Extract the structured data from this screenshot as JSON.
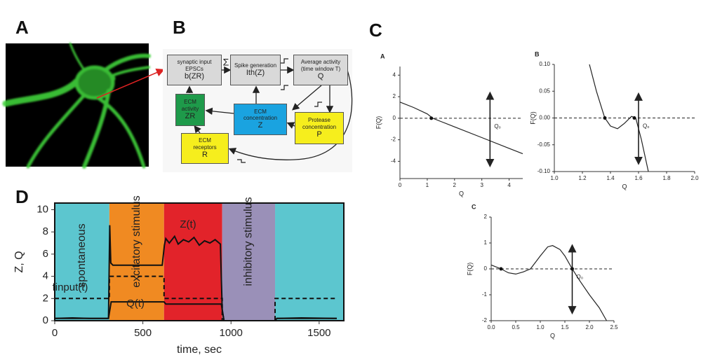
{
  "panels": [
    "A",
    "B",
    "C",
    "D"
  ],
  "diagram": {
    "nodes": [
      {
        "lines": [
          "synaptic input",
          "EPSCs",
          "b(ZR)"
        ]
      },
      {
        "lines": [
          "Spike generation",
          "Ith(Z)"
        ]
      },
      {
        "lines": [
          "Average activity",
          "(time window T)",
          "Q"
        ]
      },
      {
        "lines": [
          "ECM",
          "activity",
          "ZR"
        ]
      },
      {
        "lines": [
          "ECM",
          "concentration",
          "Z"
        ]
      },
      {
        "lines": [
          "Protease",
          "concentration",
          "P"
        ]
      },
      {
        "lines": [
          "ECM",
          "receptors",
          "R"
        ]
      }
    ],
    "sum": "Σ"
  },
  "chart_data": [
    {
      "type": "line",
      "title": "A",
      "x_label": "Q",
      "y_label": "F(Q)",
      "xlim": [
        0,
        4.5
      ],
      "xticks": [
        0,
        1,
        2,
        3,
        4
      ],
      "ylim": [
        -5.6,
        4.8
      ],
      "yticks": [
        -4,
        -2,
        0,
        2,
        4
      ],
      "hline": 0,
      "points": [
        {
          "x": 1.15,
          "y": 0
        }
      ],
      "arrow": {
        "x": 3.3,
        "label": "Q₀"
      },
      "series": [
        {
          "color": "#222222",
          "x": [
            0,
            0.5,
            1,
            1.2,
            1.5,
            2,
            3,
            4,
            4.5
          ],
          "values": [
            1.5,
            1.0,
            0.4,
            0,
            -0.3,
            -0.8,
            -1.8,
            -2.8,
            -3.3
          ]
        }
      ]
    },
    {
      "type": "line",
      "title": "B",
      "x_label": "Q",
      "y_label": "F(Q)",
      "xlim": [
        1.0,
        2.0
      ],
      "xticks": [
        {
          "value": 1,
          "label": "1.0"
        },
        {
          "value": 1.2,
          "label": "1.2"
        },
        {
          "value": 1.4,
          "label": "1.4"
        },
        {
          "value": 1.6,
          "label": "1.6"
        },
        {
          "value": 1.8,
          "label": "1.8"
        },
        {
          "value": 2,
          "label": "2.0"
        }
      ],
      "ylim": [
        -0.1,
        0.1
      ],
      "yticks": [
        {
          "value": -0.1,
          "label": "-0.10"
        },
        {
          "value": -0.05,
          "label": "-0.05"
        },
        {
          "value": 0,
          "label": "0.00"
        },
        {
          "value": 0.05,
          "label": "0.05"
        },
        {
          "value": 0.1,
          "label": "0.10"
        }
      ],
      "hline": 0,
      "points": [
        {
          "x": 1.36,
          "y": 0
        },
        {
          "x": 1.57,
          "y": 0
        }
      ],
      "arrow": {
        "x": 1.6,
        "label": "Q₀"
      },
      "series": [
        {
          "color": "#222222",
          "x": [
            1.25,
            1.3,
            1.35,
            1.36,
            1.4,
            1.45,
            1.5,
            1.55,
            1.58,
            1.62,
            1.67
          ],
          "values": [
            0.1,
            0.05,
            0.008,
            0,
            -0.015,
            -0.02,
            -0.01,
            0.003,
            0,
            -0.04,
            -0.1
          ]
        }
      ]
    },
    {
      "type": "line",
      "title": "C",
      "x_label": "Q",
      "y_label": "F(Q)",
      "xlim": [
        0,
        2.5
      ],
      "xticks": [
        {
          "value": 0,
          "label": "0.0"
        },
        {
          "value": 0.5,
          "label": "0.5"
        },
        {
          "value": 1,
          "label": "1.0"
        },
        {
          "value": 1.5,
          "label": "1.5"
        },
        {
          "value": 2,
          "label": "2.0"
        },
        {
          "value": 2.5,
          "label": "2.5"
        }
      ],
      "ylim": [
        -2,
        2
      ],
      "yticks": [
        -2,
        -1,
        0,
        1,
        2
      ],
      "hline": 0,
      "points": [
        {
          "x": 0.2,
          "y": 0
        },
        {
          "x": 1.65,
          "y": 0
        }
      ],
      "arrow": {
        "x": 1.65,
        "label": "Q₀"
      },
      "series": [
        {
          "color": "#222222",
          "x": [
            0,
            0.2,
            0.35,
            0.5,
            0.65,
            0.8,
            1.0,
            1.15,
            1.25,
            1.4,
            1.5,
            1.65,
            1.8,
            2.0,
            2.2,
            2.35
          ],
          "values": [
            0.15,
            0,
            -0.15,
            -0.2,
            -0.12,
            0,
            0.5,
            0.85,
            0.9,
            0.75,
            0.5,
            0,
            -0.45,
            -1.0,
            -1.5,
            -2.0
          ]
        }
      ]
    },
    {
      "type": "line",
      "x_label": "time, sec",
      "y_label": "Z, Q",
      "xlim": [
        0,
        1640
      ],
      "xticks": [
        0,
        500,
        1000,
        1500
      ],
      "ylim": [
        0,
        10.6
      ],
      "yticks": [
        0,
        2,
        4,
        6,
        8,
        10
      ],
      "regions": [
        {
          "label": "spontaneous",
          "start": 0,
          "end": 310,
          "color": "#5cc6cf"
        },
        {
          "label": "excitatory stimulus",
          "start": 310,
          "end": 620,
          "color": "#f08a22"
        },
        {
          "start": 620,
          "end": 950,
          "color": "#e2232a"
        },
        {
          "label": "inhibitory stimulus",
          "start": 950,
          "end": 1250,
          "color": "#9a90b8"
        },
        {
          "start": 1250,
          "end": 1640,
          "color": "#5cc6cf"
        }
      ],
      "series": [
        {
          "name": "finput(t)",
          "color": "#111111",
          "dashed": true,
          "x": [
            0,
            310,
            310,
            620,
            620,
            950,
            950,
            1250,
            1250,
            1600
          ],
          "values": [
            2,
            2,
            4,
            4,
            2,
            2,
            0,
            0,
            2,
            2
          ]
        },
        {
          "name": "Z(t)",
          "color": "#111111",
          "x": [
            0,
            100,
            200,
            305,
            312,
            318,
            330,
            400,
            500,
            610,
            622,
            630,
            650,
            680,
            700,
            730,
            760,
            790,
            820,
            850,
            880,
            910,
            940,
            950,
            960,
            1100,
            1250,
            1260,
            1400,
            1600
          ],
          "values": [
            0.2,
            0.25,
            0.2,
            0.2,
            8.6,
            5.2,
            5.0,
            5.0,
            5.0,
            5.0,
            6.8,
            7.4,
            7.0,
            7.6,
            6.9,
            7.3,
            7.1,
            7.5,
            6.8,
            7.2,
            7.0,
            7.3,
            6.9,
            1,
            0,
            0,
            0,
            0.2,
            0.25,
            0.2
          ]
        },
        {
          "name": "Q(t)",
          "color": "#111111",
          "x": [
            0,
            305,
            320,
            620,
            630,
            945,
            960,
            1250,
            1260,
            1600
          ],
          "values": [
            0.2,
            0.2,
            1.7,
            1.7,
            1.5,
            1.5,
            0,
            0,
            0.2,
            0.2
          ]
        }
      ]
    }
  ]
}
